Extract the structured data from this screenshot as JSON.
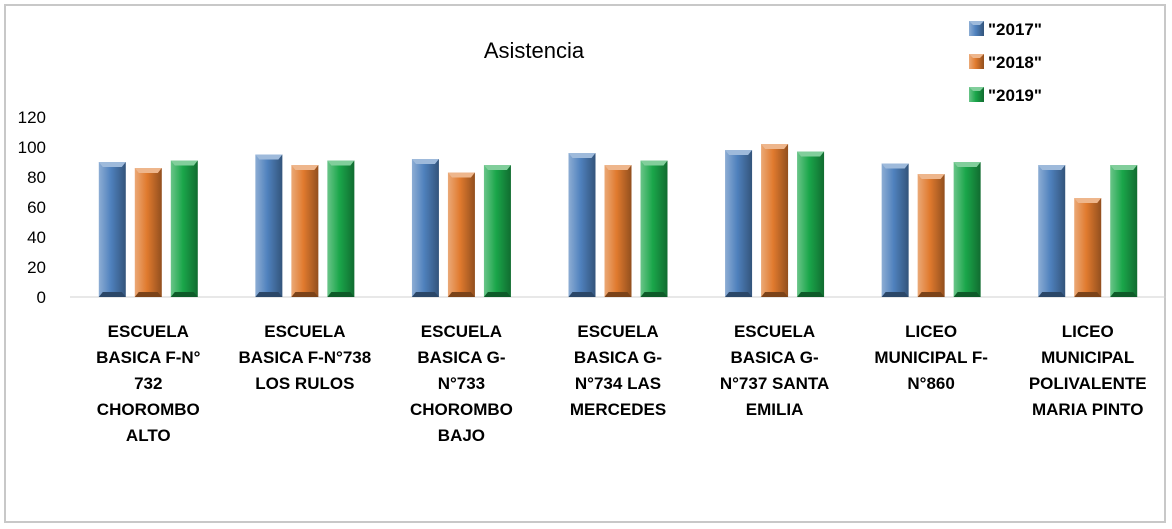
{
  "chart_data": {
    "type": "bar",
    "title": "Asistencia",
    "xlabel": "",
    "ylabel": "",
    "ylim": [
      0,
      120
    ],
    "yticks": [
      0,
      20,
      40,
      60,
      80,
      100,
      120
    ],
    "grid": false,
    "legend_position": "top-right",
    "categories": [
      [
        "ESCUELA",
        "BASICA F-N°",
        "732",
        "CHOROMBO",
        "ALTO"
      ],
      [
        "ESCUELA",
        "BASICA F-N°738",
        "LOS RULOS"
      ],
      [
        "ESCUELA",
        "BASICA G-",
        "N°733",
        "CHOROMBO",
        "BAJO"
      ],
      [
        "ESCUELA",
        "BASICA G-",
        "N°734 LAS",
        "MERCEDES"
      ],
      [
        "ESCUELA",
        "BASICA G-",
        "N°737 SANTA",
        "EMILIA"
      ],
      [
        "LICEO",
        "MUNICIPAL F-",
        "N°860"
      ],
      [
        "LICEO",
        "MUNICIPAL",
        "POLIVALENTE",
        "MARIA PINTO"
      ]
    ],
    "series": [
      {
        "name": "\"2017\"",
        "color": "#4f81bd",
        "values": [
          90,
          95,
          92,
          96,
          98,
          89,
          88
        ]
      },
      {
        "name": "\"2018\"",
        "color": "#e07a2e",
        "values": [
          86,
          88,
          83,
          88,
          102,
          82,
          66
        ]
      },
      {
        "name": "\"2019\"",
        "color": "#1aa64a",
        "values": [
          91,
          91,
          88,
          91,
          97,
          90,
          88
        ]
      }
    ]
  }
}
